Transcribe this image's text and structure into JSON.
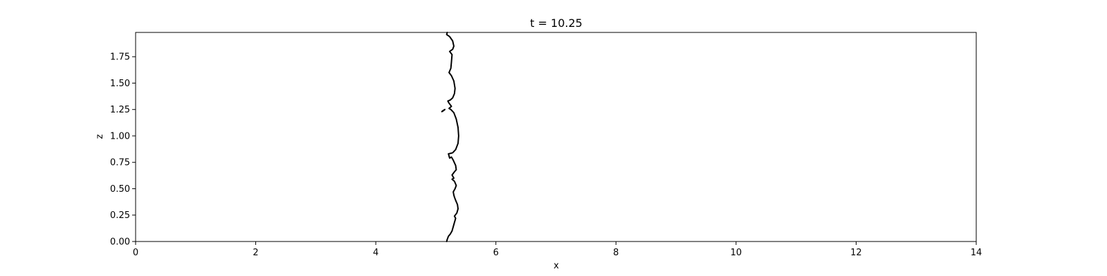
{
  "chart_data": {
    "type": "line",
    "title": "t = 10.25",
    "xlabel": "x",
    "ylabel": "z",
    "xlim": [
      0,
      14
    ],
    "ylim": [
      0,
      1.98
    ],
    "grid": false,
    "legend": "none",
    "x_ticks": [
      0,
      2,
      4,
      6,
      8,
      10,
      12,
      14
    ],
    "x_tick_labels": [
      "0",
      "2",
      "4",
      "6",
      "8",
      "10",
      "12",
      "14"
    ],
    "y_ticks": [
      0,
      0.25,
      0.5,
      0.75,
      1.0,
      1.25,
      1.5,
      1.75
    ],
    "y_tick_labels": [
      "0.00",
      "0.25",
      "0.50",
      "0.75",
      "1.00",
      "1.25",
      "1.50",
      "1.75"
    ],
    "line_color": "#000000",
    "series": [
      {
        "points": [
          {
            "x": 5.19,
            "z": 1.98
          },
          {
            "x": 5.18,
            "z": 1.96
          },
          {
            "x": 5.23,
            "z": 1.94
          },
          {
            "x": 5.28,
            "z": 1.9
          },
          {
            "x": 5.3,
            "z": 1.85
          },
          {
            "x": 5.28,
            "z": 1.82
          },
          {
            "x": 5.23,
            "z": 1.8
          },
          {
            "x": 5.27,
            "z": 1.77
          },
          {
            "x": 5.26,
            "z": 1.7
          },
          {
            "x": 5.25,
            "z": 1.64
          },
          {
            "x": 5.22,
            "z": 1.6
          },
          {
            "x": 5.26,
            "z": 1.57
          },
          {
            "x": 5.3,
            "z": 1.52
          },
          {
            "x": 5.32,
            "z": 1.45
          },
          {
            "x": 5.31,
            "z": 1.4
          },
          {
            "x": 5.28,
            "z": 1.36
          },
          {
            "x": 5.24,
            "z": 1.34
          },
          {
            "x": 5.2,
            "z": 1.33
          },
          {
            "x": 5.22,
            "z": 1.31
          },
          {
            "x": 5.26,
            "z": 1.28
          },
          {
            "x": 5.22,
            "z": 1.26
          },
          {
            "x": 5.25,
            "z": 1.25
          },
          {
            "x": 5.3,
            "z": 1.22
          },
          {
            "x": 5.34,
            "z": 1.16
          },
          {
            "x": 5.37,
            "z": 1.08
          },
          {
            "x": 5.38,
            "z": 1.0
          },
          {
            "x": 5.37,
            "z": 0.93
          },
          {
            "x": 5.33,
            "z": 0.87
          },
          {
            "x": 5.28,
            "z": 0.84
          },
          {
            "x": 5.21,
            "z": 0.83
          },
          {
            "x": 5.23,
            "z": 0.79
          },
          {
            "x": 5.26,
            "z": 0.8
          },
          {
            "x": 5.29,
            "z": 0.77
          },
          {
            "x": 5.33,
            "z": 0.72
          },
          {
            "x": 5.34,
            "z": 0.68
          },
          {
            "x": 5.31,
            "z": 0.66
          },
          {
            "x": 5.27,
            "z": 0.63
          },
          {
            "x": 5.3,
            "z": 0.6
          },
          {
            "x": 5.27,
            "z": 0.59
          },
          {
            "x": 5.31,
            "z": 0.57
          },
          {
            "x": 5.34,
            "z": 0.53
          },
          {
            "x": 5.32,
            "z": 0.5
          },
          {
            "x": 5.29,
            "z": 0.47
          },
          {
            "x": 5.3,
            "z": 0.44
          },
          {
            "x": 5.31,
            "z": 0.42
          },
          {
            "x": 5.33,
            "z": 0.39
          },
          {
            "x": 5.36,
            "z": 0.35
          },
          {
            "x": 5.37,
            "z": 0.31
          },
          {
            "x": 5.35,
            "z": 0.27
          },
          {
            "x": 5.31,
            "z": 0.24
          },
          {
            "x": 5.33,
            "z": 0.22
          },
          {
            "x": 5.31,
            "z": 0.18
          },
          {
            "x": 5.29,
            "z": 0.14
          },
          {
            "x": 5.27,
            "z": 0.1
          },
          {
            "x": 5.24,
            "z": 0.07
          },
          {
            "x": 5.21,
            "z": 0.05
          },
          {
            "x": 5.19,
            "z": 0.02
          },
          {
            "x": 5.18,
            "z": 0.0
          }
        ]
      },
      {
        "points": [
          {
            "x": 5.1,
            "z": 1.23
          },
          {
            "x": 5.12,
            "z": 1.24
          },
          {
            "x": 5.15,
            "z": 1.25
          },
          {
            "x": 5.13,
            "z": 1.24
          },
          {
            "x": 5.1,
            "z": 1.23
          }
        ]
      }
    ]
  }
}
